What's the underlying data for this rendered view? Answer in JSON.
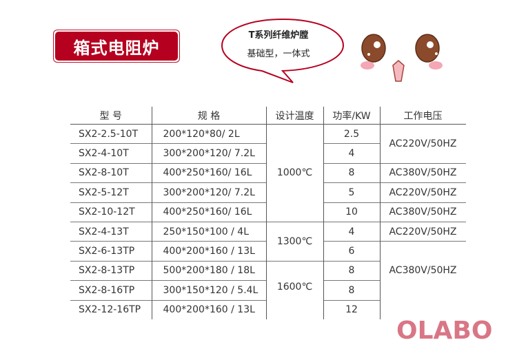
{
  "title": "箱式电阻炉",
  "bubble": {
    "line1": "T系列纤维炉膛",
    "line2": "基础型，一体式"
  },
  "table": {
    "headers": [
      "型  号",
      "规  格",
      "设计温度",
      "功率/KW",
      "工作电压"
    ],
    "rows": [
      {
        "model": "SX2-2.5-10T",
        "spec": "200*120*80/ 2L",
        "power": "2.5"
      },
      {
        "model": "SX2-4-10T",
        "spec": "300*200*120/ 7.2L",
        "power": "4"
      },
      {
        "model": "SX2-8-10T",
        "spec": "400*250*160/ 16L",
        "power": "8"
      },
      {
        "model": "SX2-5-12T",
        "spec": "300*200*120/ 7.2L",
        "power": "5"
      },
      {
        "model": "SX2-10-12T",
        "spec": "400*250*160/ 16L",
        "power": "10"
      },
      {
        "model": "SX2-4-13T",
        "spec": "250*150*100 / 4L",
        "power": "4"
      },
      {
        "model": "SX2-6-13TP",
        "spec": "400*200*160 / 13L",
        "power": "6"
      },
      {
        "model": "SX2-8-13TP",
        "spec": "500*200*180 / 18L",
        "power": "8"
      },
      {
        "model": "SX2-8-16TP",
        "spec": "300*150*120 / 5.4L",
        "power": "8"
      },
      {
        "model": "SX2-12-16TP",
        "spec": "400*200*160 / 13L",
        "power": "12"
      }
    ],
    "temps": [
      "1000℃",
      "1300℃",
      "1600℃"
    ],
    "voltages": [
      "AC220V/50HZ",
      "AC380V/50HZ",
      "AC220V/50HZ",
      "AC380V/50HZ",
      "AC220V/50HZ",
      "AC380V/50HZ"
    ]
  },
  "logo": "OLABO",
  "colors": {
    "brand_red": "#b5001f",
    "logo_pink": "#d97686",
    "eye_brown": "#8b4a2b"
  }
}
